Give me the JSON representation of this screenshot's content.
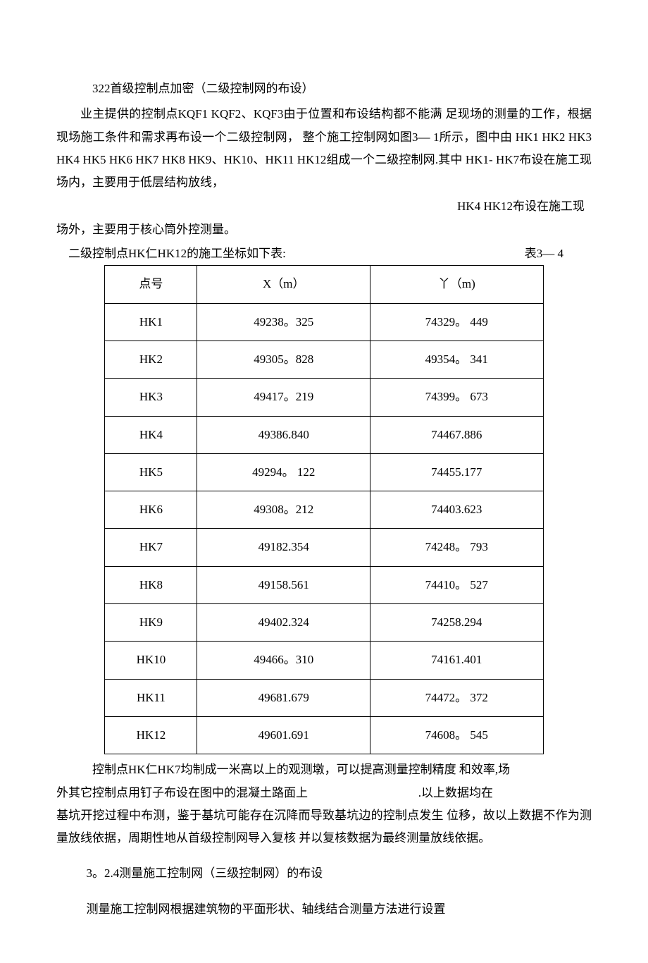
{
  "heading1": "322首级控制点加密（二级控制网的布设）",
  "p1": "业主提供的控制点KQF1 KQF2、KQF3由于位置和布设结构都不能满 足现场的测量的工作，根据现场施工条件和需求再布设一个二级控制网， 整个施工控制网如图3— 1所示，图中由 HK1 HK2 HK3 HK4 HK5 HK6 HK7 HK8 HK9、HK10、HK11 HK12组成一个二级控制网.其中 HK1- HK7布设在施工现场内，主要用于低层结构放线，",
  "p1b": "HK4 HK12布设在施工现",
  "p1c": "场外，主要用于核心筒外控测量。",
  "table_intro_left": "二级控制点HK仁HK12的施工坐标如下表:",
  "table_intro_right": "表3— 4",
  "table": {
    "headers": [
      "点号",
      "X（m）",
      "丫（m)"
    ],
    "rows": [
      [
        "HK1",
        "49238。325",
        "74329。 449"
      ],
      [
        "HK2",
        "49305。828",
        "49354。 341"
      ],
      [
        "HK3",
        "49417。219",
        "74399。 673"
      ],
      [
        "HK4",
        "49386.840",
        "74467.886"
      ],
      [
        "HK5",
        "49294。 122",
        "74455.177"
      ],
      [
        "HK6",
        "49308。212",
        "74403.623"
      ],
      [
        "HK7",
        "49182.354",
        "74248。 793"
      ],
      [
        "HK8",
        "49158.561",
        "74410。 527"
      ],
      [
        "HK9",
        "49402.324",
        "74258.294"
      ],
      [
        "HK10",
        "49466。310",
        "74161.401"
      ],
      [
        "HK11",
        "49681.679",
        "74472。 372"
      ],
      [
        "HK12",
        "49601.691",
        "74608。 545"
      ]
    ]
  },
  "p2a": "控制点HK仁HK7均制成一米高以上的观测墩，可以提高测量控制精度 和效率,场",
  "p2b_left": "外其它控制点用钉子布设在图中的混凝土路面上",
  "p2b_right": ".以上数据均在",
  "p2c": "基坑开挖过程中布测，鉴于基坑可能存在沉降而导致基坑边的控制点发生 位移，故以上数据不作为测量放线依据，周期性地从首级控制网导入复核 并以复核数据为最终测量放线依据。",
  "heading2": "3。2.4测量施工控制网（三级控制网）的布设",
  "p3": "测量施工控制网根据建筑物的平面形状、轴线结合测量方法进行设置"
}
